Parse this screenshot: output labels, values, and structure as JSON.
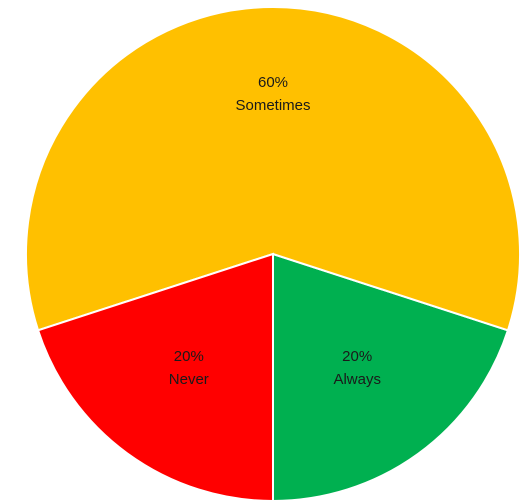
{
  "chart_data": {
    "type": "pie",
    "title": "",
    "slices": [
      {
        "category": "Always",
        "percent_label": "20%",
        "value": 20,
        "color": "#00b050"
      },
      {
        "category": "Never",
        "percent_label": "20%",
        "value": 20,
        "color": "#ff0000"
      },
      {
        "category": "Sometimes",
        "percent_label": "60%",
        "value": 60,
        "color": "#ffc000"
      }
    ],
    "start_angle_deg": 180,
    "direction": "clockwise-from-bottom",
    "legend": "none"
  }
}
